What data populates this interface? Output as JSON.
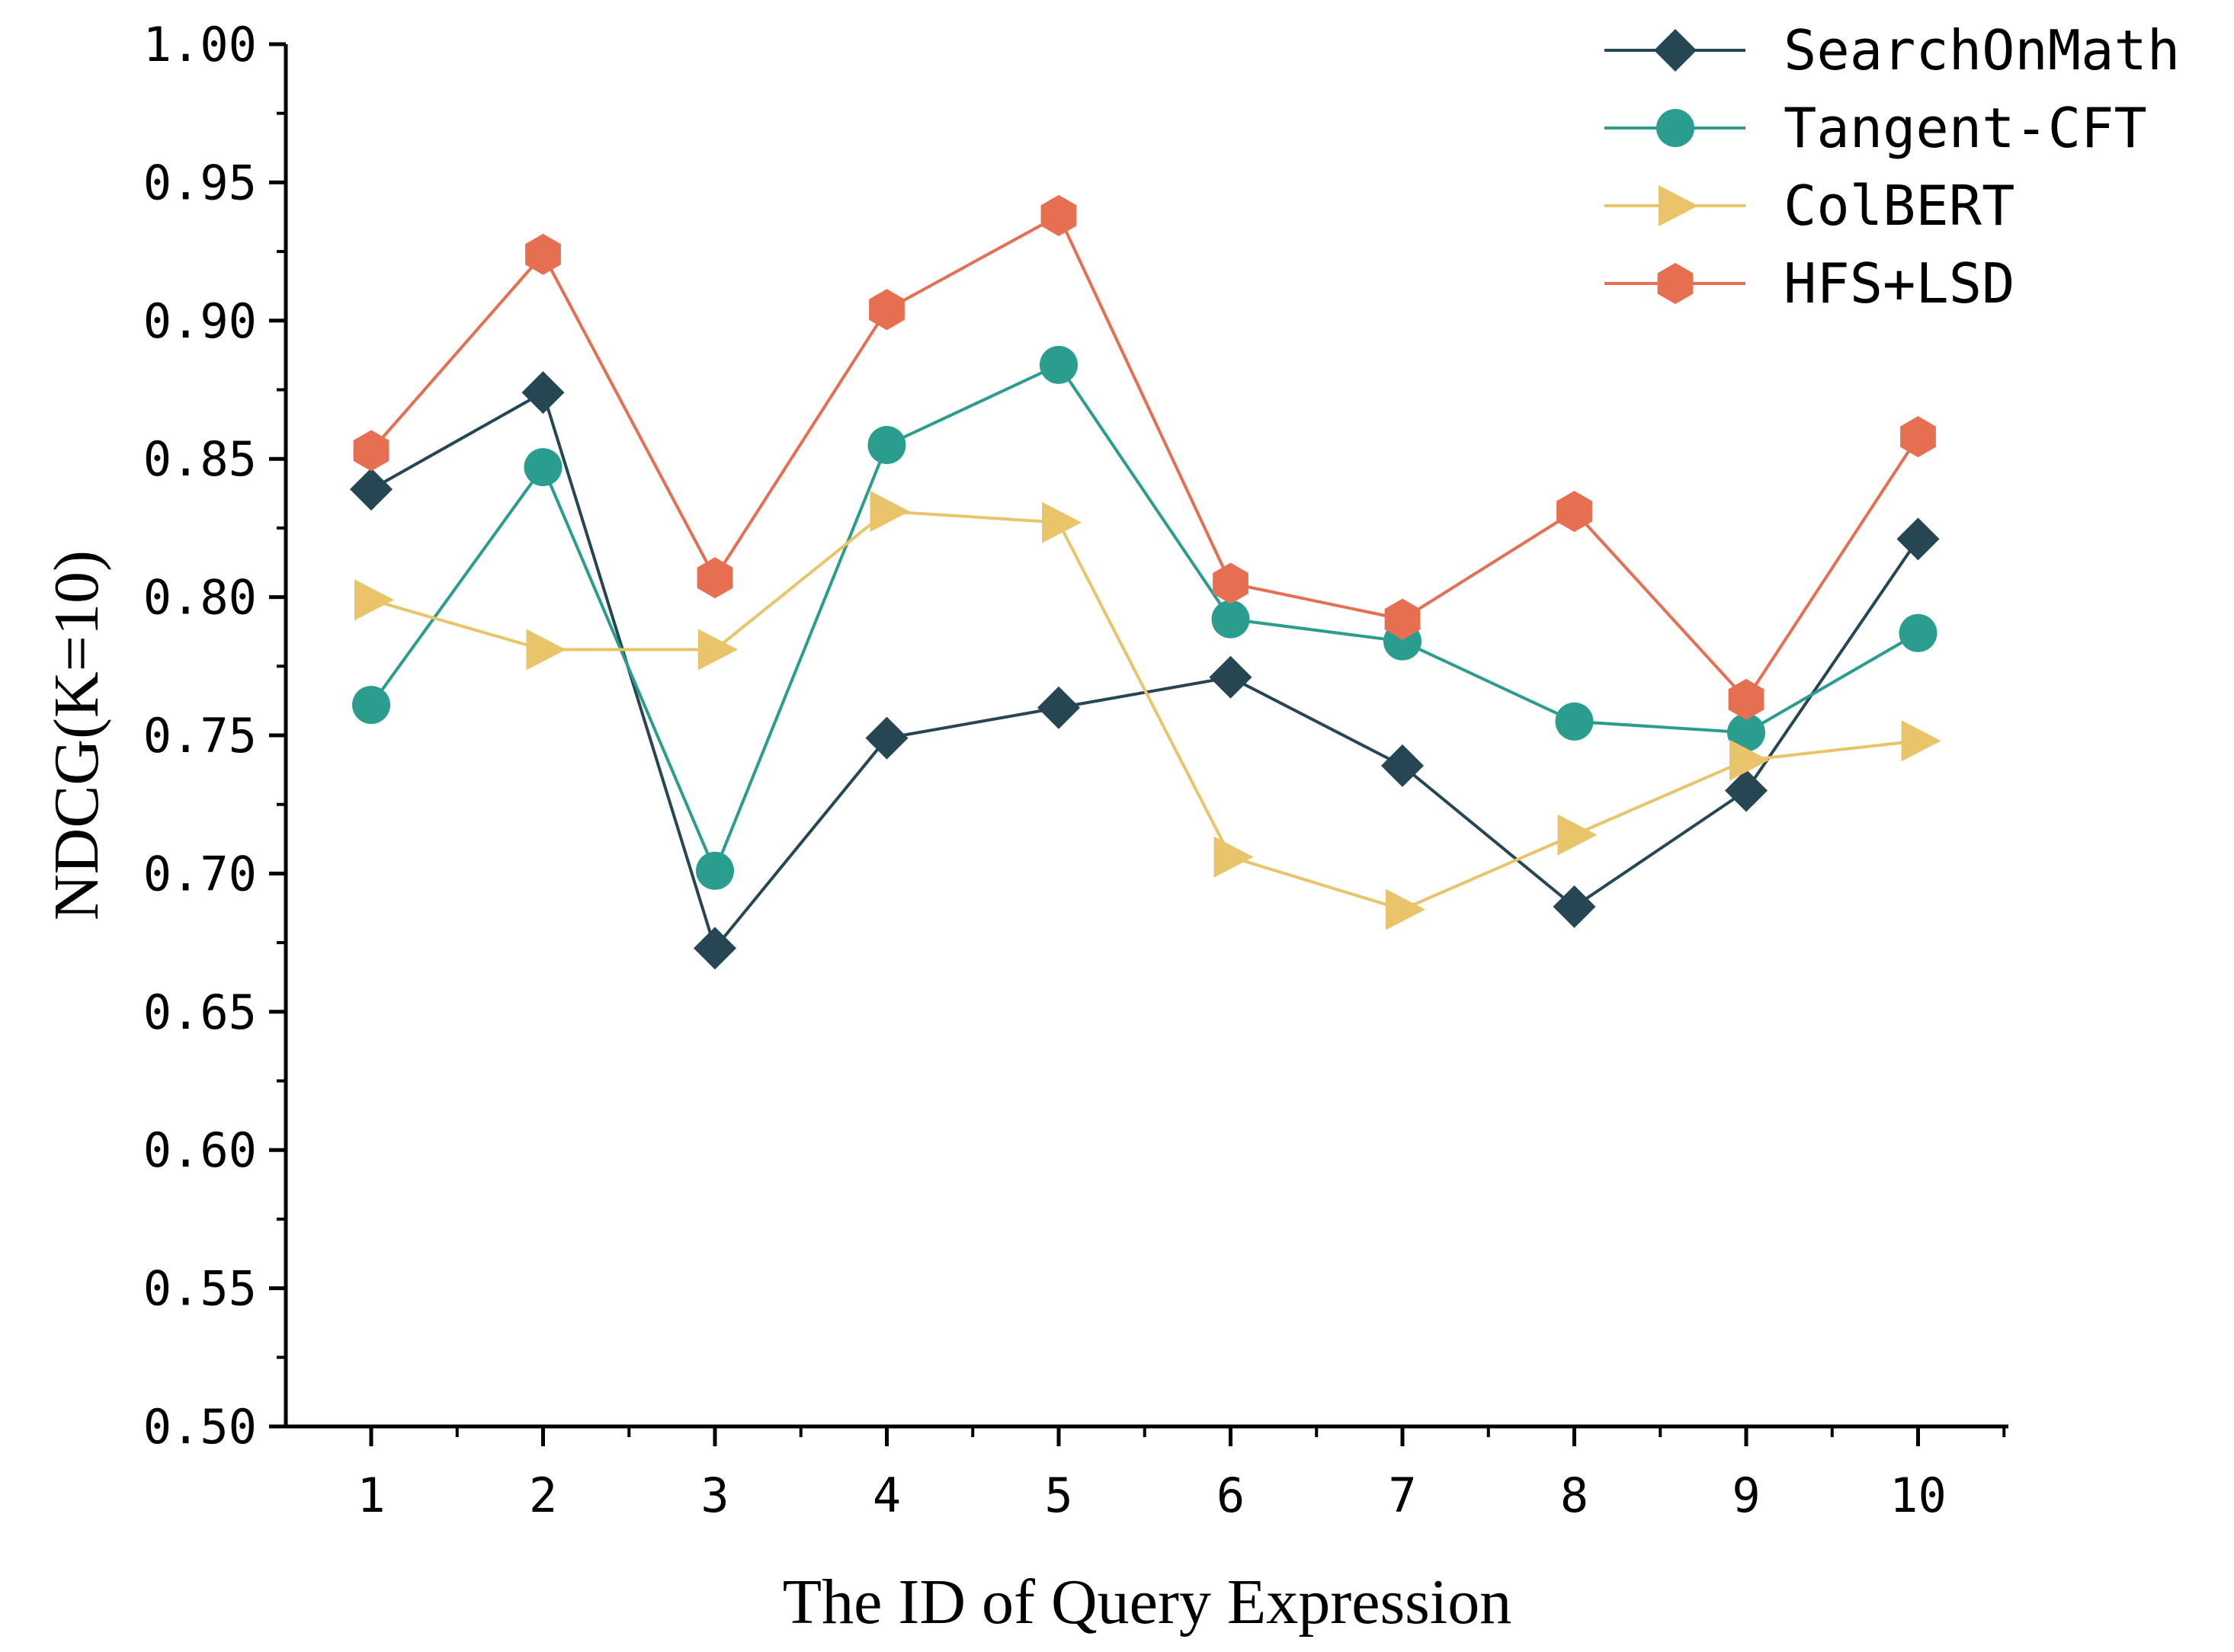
{
  "chart_data": {
    "type": "line",
    "xlabel": "The ID of Query Expression",
    "ylabel": "NDCG(K=10)",
    "x": [
      1,
      2,
      3,
      4,
      5,
      6,
      7,
      8,
      9,
      10
    ],
    "xticks": [
      "1",
      "2",
      "3",
      "4",
      "5",
      "6",
      "7",
      "8",
      "9",
      "10"
    ],
    "ylim": [
      0.5,
      1.0
    ],
    "yticks": [
      "0.50",
      "0.55",
      "0.60",
      "0.65",
      "0.70",
      "0.75",
      "0.80",
      "0.85",
      "0.90",
      "0.95",
      "1.00"
    ],
    "grid": false,
    "legend_position": "top-right",
    "series": [
      {
        "name": "SearchOnMath",
        "color": "#264653",
        "marker": "diamond",
        "values": [
          0.839,
          0.874,
          0.673,
          0.749,
          0.76,
          0.771,
          0.739,
          0.688,
          0.73,
          0.821
        ]
      },
      {
        "name": "Tangent-CFT",
        "color": "#2a9d8f",
        "marker": "circle",
        "values": [
          0.761,
          0.847,
          0.701,
          0.855,
          0.884,
          0.792,
          0.784,
          0.755,
          0.751,
          0.787
        ]
      },
      {
        "name": "ColBERT",
        "color": "#e9c46a",
        "marker": "triangle-right",
        "values": [
          0.799,
          0.781,
          0.781,
          0.831,
          0.827,
          0.706,
          0.687,
          0.714,
          0.741,
          0.748
        ]
      },
      {
        "name": "HFS+LSD",
        "color": "#e76f51",
        "marker": "hexagon",
        "values": [
          0.853,
          0.924,
          0.807,
          0.904,
          0.938,
          0.805,
          0.792,
          0.831,
          0.763,
          0.858
        ]
      }
    ]
  }
}
